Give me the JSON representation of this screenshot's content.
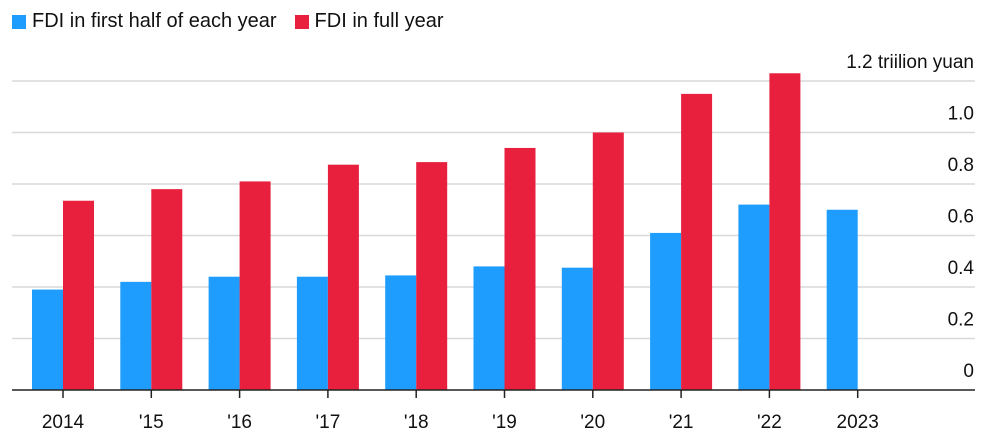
{
  "chart_data": {
    "type": "bar",
    "categories": [
      "2014",
      "'15",
      "'16",
      "'17",
      "'18",
      "'19",
      "'20",
      "'21",
      "'22",
      "2023"
    ],
    "series": [
      {
        "name": "FDI in first half of each year",
        "color": "#1e9dff",
        "values": [
          0.39,
          0.42,
          0.44,
          0.44,
          0.445,
          0.48,
          0.475,
          0.61,
          0.72,
          0.7
        ]
      },
      {
        "name": "FDI in full year",
        "color": "#e8203e",
        "values": [
          0.735,
          0.78,
          0.81,
          0.875,
          0.885,
          0.94,
          1.0,
          1.15,
          1.23,
          null
        ]
      }
    ],
    "y_ticks": [
      "0",
      "0.2",
      "0.4",
      "0.6",
      "0.8",
      "1.0",
      "1.2 triilion yuan"
    ],
    "ylim": [
      0,
      1.2
    ],
    "legend_position": "top-left",
    "grid": true
  }
}
